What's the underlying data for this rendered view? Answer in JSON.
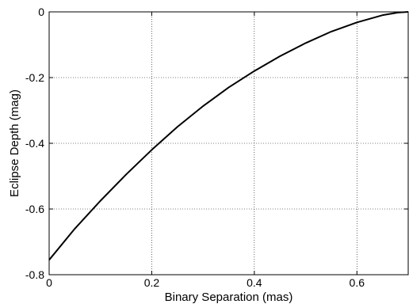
{
  "chart_data": {
    "type": "line",
    "title": "",
    "xlabel": "Binary Separation (mas)",
    "ylabel": "Eclipse Depth (mag)",
    "xlim": [
      0,
      0.7
    ],
    "ylim": [
      -0.8,
      0
    ],
    "grid": true,
    "x_ticks": [
      0,
      0.2,
      0.4,
      0.6
    ],
    "x_tick_labels": [
      "0",
      "0.2",
      "0.4",
      "0.6"
    ],
    "y_ticks": [
      0,
      -0.2,
      -0.4,
      -0.6,
      -0.8
    ],
    "y_tick_labels": [
      "0",
      "-0.2",
      "-0.4",
      "-0.6",
      "-0.8"
    ],
    "series": [
      {
        "color": "#000000",
        "x": [
          0,
          0.05,
          0.1,
          0.15,
          0.2,
          0.25,
          0.3,
          0.35,
          0.4,
          0.45,
          0.5,
          0.55,
          0.6,
          0.65,
          0.68,
          0.7
        ],
        "y": [
          -0.755,
          -0.66,
          -0.575,
          -0.495,
          -0.42,
          -0.35,
          -0.287,
          -0.23,
          -0.18,
          -0.135,
          -0.095,
          -0.06,
          -0.032,
          -0.01,
          -0.002,
          0
        ]
      }
    ]
  }
}
